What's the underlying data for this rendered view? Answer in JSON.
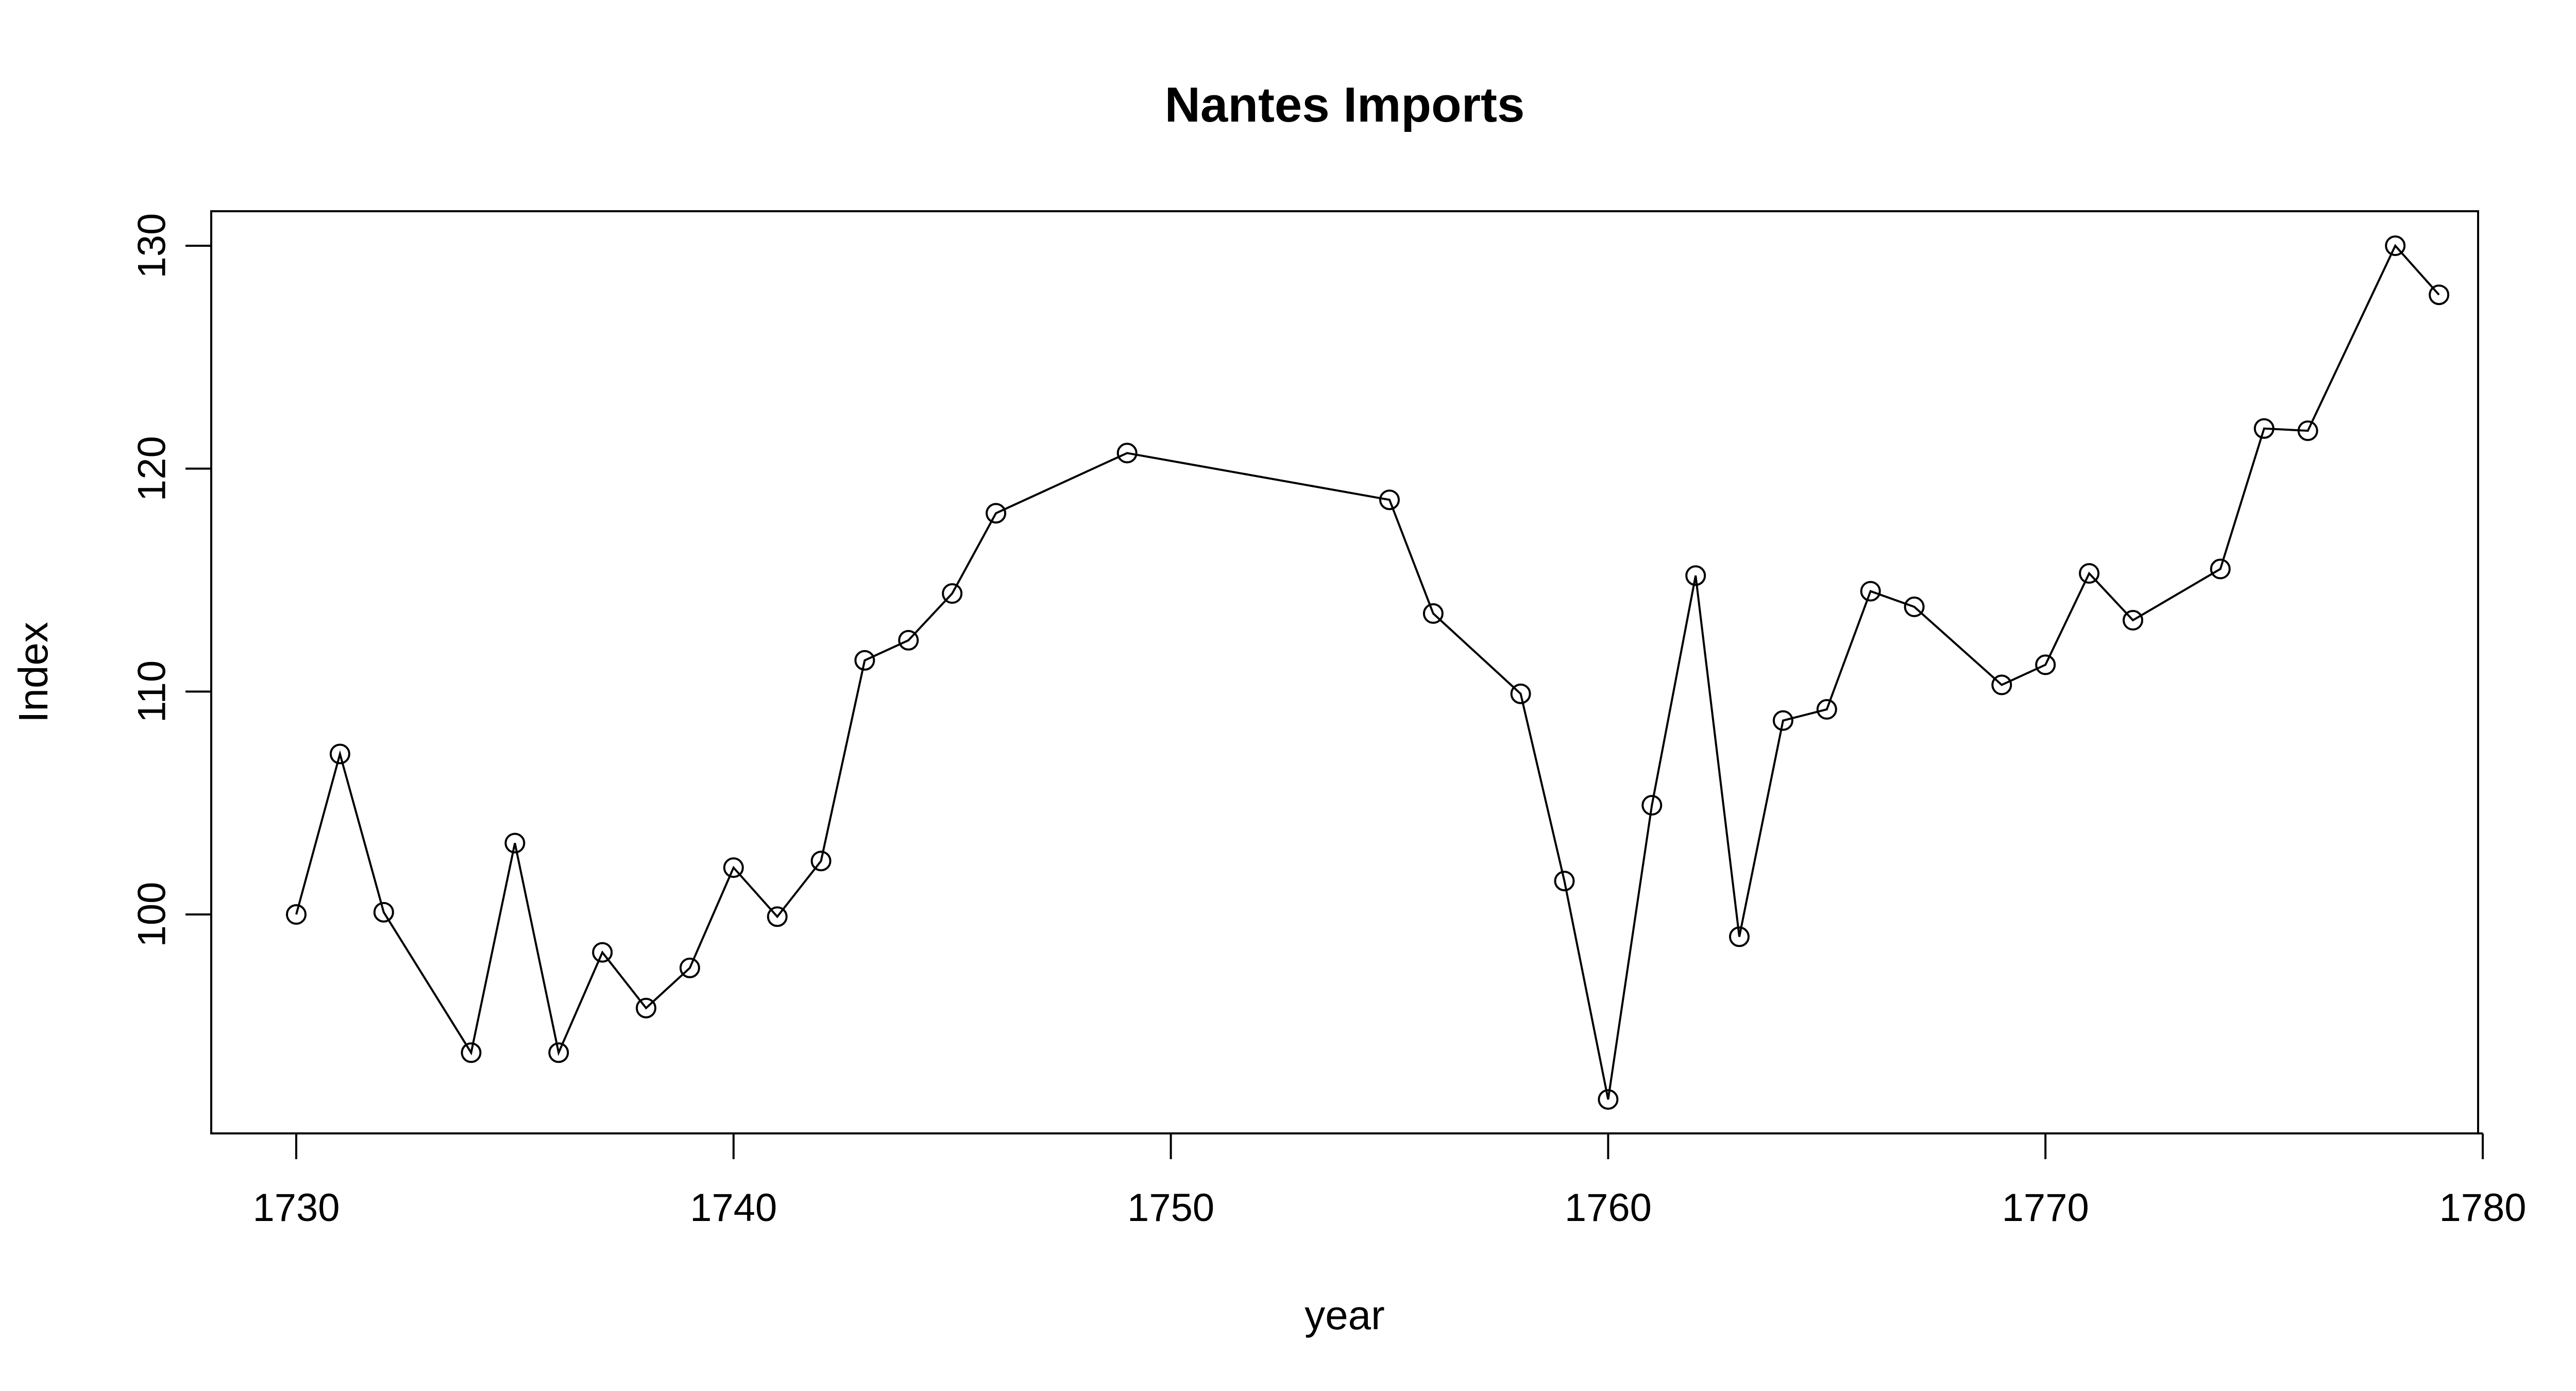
{
  "chart_data": {
    "type": "line",
    "title": "Nantes Imports",
    "xlabel": "year",
    "ylabel": "Index",
    "xlim": [
      1728,
      1781
    ],
    "ylim": [
      90,
      131
    ],
    "xticks": [
      1730,
      1740,
      1750,
      1760,
      1770,
      1780
    ],
    "yticks": [
      100,
      110,
      120,
      130
    ],
    "grid": false,
    "markers": "open-circle",
    "line_color": "#000000",
    "x": [
      1730,
      1731,
      1732,
      1734,
      1735,
      1736,
      1737,
      1738,
      1739,
      1740,
      1741,
      1742,
      1743,
      1744,
      1745,
      1746,
      1749,
      1755,
      1756,
      1758,
      1759,
      1760,
      1761,
      1762,
      1763,
      1764,
      1765,
      1766,
      1767,
      1769,
      1770,
      1771,
      1772,
      1774,
      1775,
      1776,
      1778,
      1779
    ],
    "y": [
      100.0,
      107.2,
      100.1,
      93.8,
      103.2,
      93.8,
      98.3,
      95.8,
      97.6,
      102.1,
      99.9,
      102.4,
      111.4,
      112.3,
      114.4,
      118.0,
      120.7,
      118.6,
      113.5,
      109.9,
      101.5,
      91.7,
      104.9,
      115.2,
      99.0,
      108.7,
      109.2,
      114.5,
      113.8,
      110.3,
      111.2,
      115.3,
      113.2,
      115.5,
      121.8,
      121.7,
      130.0,
      127.8
    ]
  }
}
